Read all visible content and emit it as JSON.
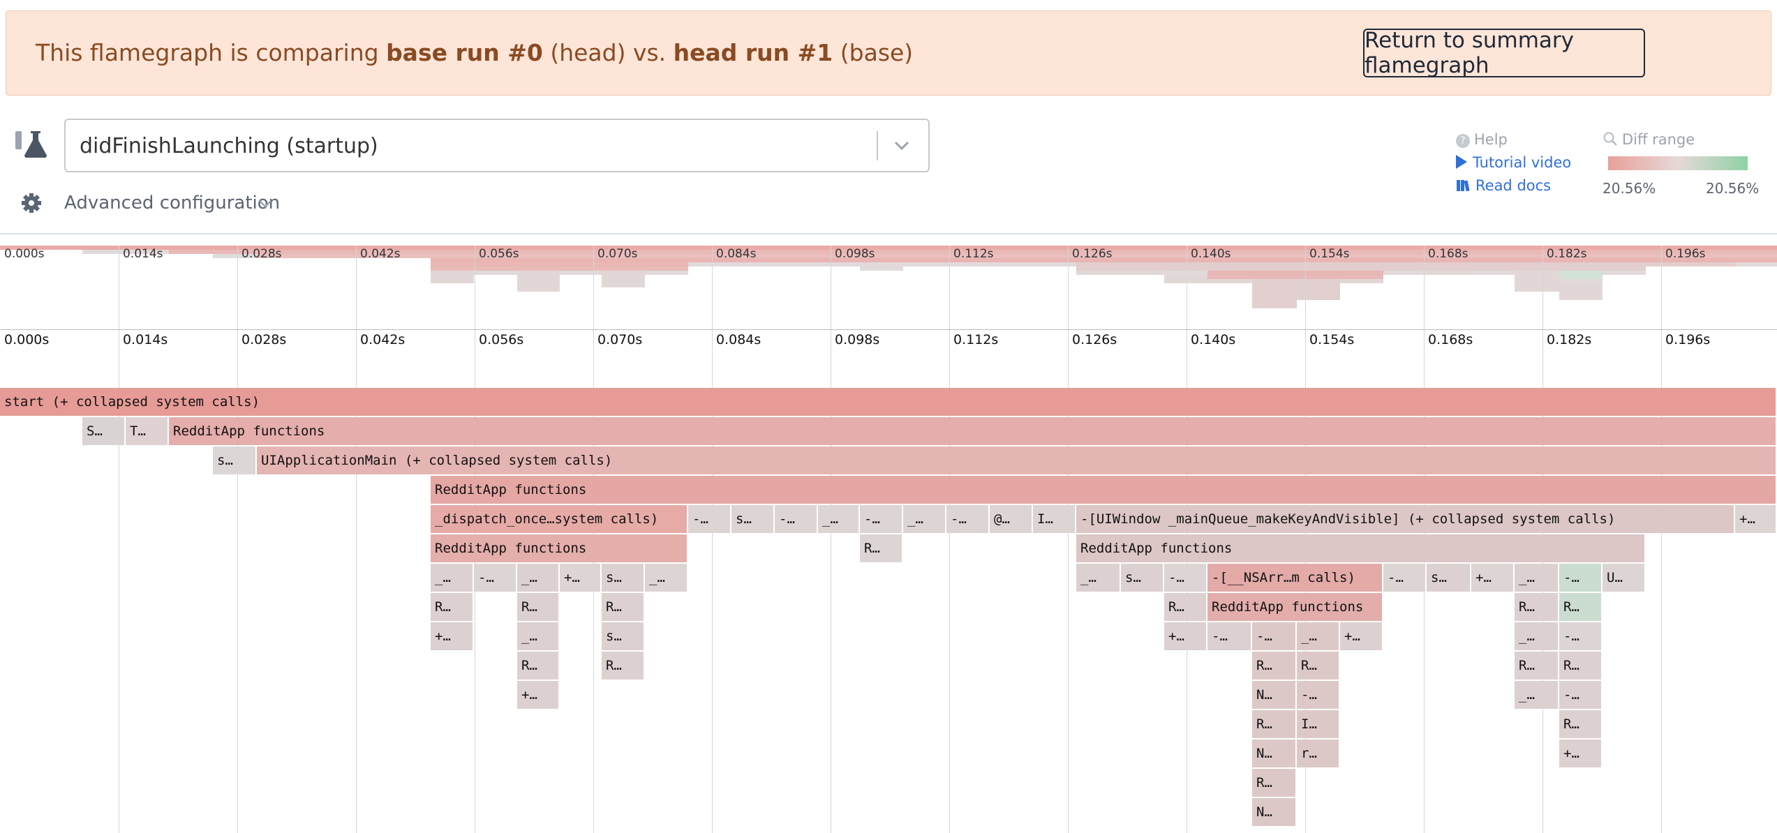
{
  "banner": {
    "prefix": "This flamegraph is comparing ",
    "base_run": "base run #0",
    "base_suffix": " (head) vs. ",
    "head_run": "head run #1",
    "head_suffix": " (base)",
    "return_button": "Return to summary flamegraph"
  },
  "selector": {
    "value": "didFinishLaunching (startup)",
    "icon": "flask-icon",
    "dropdown_icon": "chevron-down-icon"
  },
  "advanced": {
    "label": "Advanced configuration",
    "icon": "gear-icon"
  },
  "help": {
    "title": "Help",
    "tutorial": "Tutorial video",
    "docs": "Read docs"
  },
  "diff_range": {
    "title": "Diff range",
    "min": "20.56%",
    "max": "20.56%",
    "colors": {
      "slower": "#e8a09a",
      "neutral": "#e6d8d8",
      "faster": "#8fd1a5"
    }
  },
  "time_ticks": [
    "0.000s",
    "0.014s",
    "0.028s",
    "0.042s",
    "0.056s",
    "0.070s",
    "0.084s",
    "0.098s",
    "0.112s",
    "0.126s",
    "0.140s",
    "0.154s",
    "0.168s",
    "0.182s",
    "0.196s"
  ],
  "frames": [
    {
      "d": 0,
      "s": 0,
      "e": 2546,
      "t": "start (+ collapsed system calls)",
      "c": "#e69b96"
    },
    {
      "d": 1,
      "s": 118,
      "e": 180,
      "t": "S…",
      "c": "#d9d3d3"
    },
    {
      "d": 1,
      "s": 180,
      "e": 242,
      "t": "T…",
      "c": "#e0d2d2"
    },
    {
      "d": 1,
      "s": 242,
      "e": 2546,
      "t": "RedditApp functions",
      "c": "#e5adab"
    },
    {
      "d": 2,
      "s": 305,
      "e": 368,
      "t": "s…",
      "c": "#dcd6d6"
    },
    {
      "d": 2,
      "s": 368,
      "e": 2546,
      "t": "UIApplicationMain (+ collapsed system calls)",
      "c": "#e5b5b3"
    },
    {
      "d": 3,
      "s": 617,
      "e": 2546,
      "t": "RedditApp functions",
      "c": "#e5a7a4"
    },
    {
      "d": 4,
      "s": 617,
      "e": 986,
      "t": "_dispatch_once…system calls)",
      "c": "#e6aaa7"
    },
    {
      "d": 4,
      "s": 986,
      "e": 1048,
      "t": "-…",
      "c": "#ddd4d4"
    },
    {
      "d": 4,
      "s": 1048,
      "e": 1110,
      "t": "s…",
      "c": "#ddd4d4"
    },
    {
      "d": 4,
      "s": 1110,
      "e": 1172,
      "t": "-…",
      "c": "#ddd4d4"
    },
    {
      "d": 4,
      "s": 1172,
      "e": 1232,
      "t": "_…",
      "c": "#ddd4d4"
    },
    {
      "d": 4,
      "s": 1232,
      "e": 1294,
      "t": "-…",
      "c": "#ddd4d4"
    },
    {
      "d": 4,
      "s": 1294,
      "e": 1356,
      "t": "_…",
      "c": "#ddd4d4"
    },
    {
      "d": 4,
      "s": 1356,
      "e": 1418,
      "t": "-…",
      "c": "#ddd4d4"
    },
    {
      "d": 4,
      "s": 1418,
      "e": 1480,
      "t": "@…",
      "c": "#ddd4d4"
    },
    {
      "d": 4,
      "s": 1480,
      "e": 1542,
      "t": "I…",
      "c": "#ddd4d4"
    },
    {
      "d": 4,
      "s": 1542,
      "e": 2486,
      "t": "-[UIWindow _mainQueue_makeKeyAndVisible] (+ collapsed system calls)",
      "c": "#ddc6c6"
    },
    {
      "d": 4,
      "s": 2486,
      "e": 2546,
      "t": "+…",
      "c": "#ddd4d4"
    },
    {
      "d": 5,
      "s": 617,
      "e": 986,
      "t": "RedditApp functions",
      "c": "#e4aeab"
    },
    {
      "d": 5,
      "s": 1232,
      "e": 1294,
      "t": "R…",
      "c": "#ddd4d4"
    },
    {
      "d": 5,
      "s": 1542,
      "e": 2358,
      "t": "RedditApp functions",
      "c": "#ddc6c6"
    },
    {
      "d": 6,
      "s": 617,
      "e": 679,
      "t": "_…",
      "c": "#ddd0d0"
    },
    {
      "d": 6,
      "s": 679,
      "e": 741,
      "t": "-…",
      "c": "#ddd4d4"
    },
    {
      "d": 6,
      "s": 741,
      "e": 802,
      "t": "_…",
      "c": "#ddd0d0"
    },
    {
      "d": 6,
      "s": 802,
      "e": 862,
      "t": "+…",
      "c": "#ddd4d4"
    },
    {
      "d": 6,
      "s": 862,
      "e": 924,
      "t": "s…",
      "c": "#ddd0d0"
    },
    {
      "d": 6,
      "s": 924,
      "e": 986,
      "t": "_…",
      "c": "#ddd4d4"
    },
    {
      "d": 6,
      "s": 1542,
      "e": 1606,
      "t": "_…",
      "c": "#ddd0d0"
    },
    {
      "d": 6,
      "s": 1606,
      "e": 1668,
      "t": "s…",
      "c": "#ddd0d0"
    },
    {
      "d": 6,
      "s": 1668,
      "e": 1730,
      "t": "-…",
      "c": "#ddd4d4"
    },
    {
      "d": 6,
      "s": 1730,
      "e": 1982,
      "t": "-[__NSArr…m calls)",
      "c": "#e3aaa8"
    },
    {
      "d": 6,
      "s": 1982,
      "e": 2044,
      "t": "-…",
      "c": "#ddd4d4"
    },
    {
      "d": 6,
      "s": 2044,
      "e": 2108,
      "t": "s…",
      "c": "#ddd0d0"
    },
    {
      "d": 6,
      "s": 2108,
      "e": 2170,
      "t": "+…",
      "c": "#ddd4d4"
    },
    {
      "d": 6,
      "s": 2170,
      "e": 2234,
      "t": "_…",
      "c": "#ddd0d0"
    },
    {
      "d": 6,
      "s": 2234,
      "e": 2296,
      "t": "-…",
      "c": "#cbdcd0"
    },
    {
      "d": 6,
      "s": 2296,
      "e": 2358,
      "t": "U…",
      "c": "#ddd4d4"
    },
    {
      "d": 7,
      "s": 617,
      "e": 679,
      "t": "R…",
      "c": "#ddd0d0"
    },
    {
      "d": 7,
      "s": 741,
      "e": 802,
      "t": "R…",
      "c": "#ddd0d0"
    },
    {
      "d": 7,
      "s": 862,
      "e": 924,
      "t": "R…",
      "c": "#ddd0d0"
    },
    {
      "d": 7,
      "s": 1668,
      "e": 1730,
      "t": "R…",
      "c": "#ddd0d0"
    },
    {
      "d": 7,
      "s": 1730,
      "e": 1982,
      "t": "RedditApp functions",
      "c": "#e3adab"
    },
    {
      "d": 7,
      "s": 2170,
      "e": 2234,
      "t": "R…",
      "c": "#ddd0d0"
    },
    {
      "d": 7,
      "s": 2234,
      "e": 2296,
      "t": "R…",
      "c": "#cbdcd0"
    },
    {
      "d": 8,
      "s": 617,
      "e": 679,
      "t": "+…",
      "c": "#ddd0d0"
    },
    {
      "d": 8,
      "s": 741,
      "e": 802,
      "t": "_…",
      "c": "#ddd0d0"
    },
    {
      "d": 8,
      "s": 862,
      "e": 924,
      "t": "s…",
      "c": "#ddd0d0"
    },
    {
      "d": 8,
      "s": 1668,
      "e": 1730,
      "t": "+…",
      "c": "#ddd0d0"
    },
    {
      "d": 8,
      "s": 1730,
      "e": 1794,
      "t": "-…",
      "c": "#ddd0d0"
    },
    {
      "d": 8,
      "s": 1794,
      "e": 1858,
      "t": "-…",
      "c": "#ddc8c8"
    },
    {
      "d": 8,
      "s": 1858,
      "e": 1920,
      "t": "_…",
      "c": "#ddc8c8"
    },
    {
      "d": 8,
      "s": 1920,
      "e": 1982,
      "t": "+…",
      "c": "#ddd0d0"
    },
    {
      "d": 8,
      "s": 2170,
      "e": 2234,
      "t": "_…",
      "c": "#ddd0d0"
    },
    {
      "d": 8,
      "s": 2234,
      "e": 2296,
      "t": "-…",
      "c": "#ddd4d4"
    },
    {
      "d": 9,
      "s": 741,
      "e": 802,
      "t": "R…",
      "c": "#ddd0d0"
    },
    {
      "d": 9,
      "s": 862,
      "e": 924,
      "t": "R…",
      "c": "#ddd0d0"
    },
    {
      "d": 9,
      "s": 1794,
      "e": 1858,
      "t": "R…",
      "c": "#ddc8c8"
    },
    {
      "d": 9,
      "s": 1858,
      "e": 1920,
      "t": "R…",
      "c": "#ddc8c8"
    },
    {
      "d": 9,
      "s": 2170,
      "e": 2234,
      "t": "R…",
      "c": "#ddd0d0"
    },
    {
      "d": 9,
      "s": 2234,
      "e": 2296,
      "t": "R…",
      "c": "#ddd0d0"
    },
    {
      "d": 10,
      "s": 741,
      "e": 802,
      "t": "+…",
      "c": "#ddd0d0"
    },
    {
      "d": 10,
      "s": 1794,
      "e": 1858,
      "t": "N…",
      "c": "#ddc8c8"
    },
    {
      "d": 10,
      "s": 1858,
      "e": 1920,
      "t": "-…",
      "c": "#ddc8c8"
    },
    {
      "d": 10,
      "s": 2170,
      "e": 2234,
      "t": "_…",
      "c": "#ddd0d0"
    },
    {
      "d": 10,
      "s": 2234,
      "e": 2296,
      "t": "-…",
      "c": "#ddd0d0"
    },
    {
      "d": 11,
      "s": 1794,
      "e": 1858,
      "t": "R…",
      "c": "#ddc8c8"
    },
    {
      "d": 11,
      "s": 1858,
      "e": 1920,
      "t": "I…",
      "c": "#ddc8c8"
    },
    {
      "d": 11,
      "s": 2234,
      "e": 2296,
      "t": "R…",
      "c": "#ddd0d0"
    },
    {
      "d": 12,
      "s": 1794,
      "e": 1858,
      "t": "N…",
      "c": "#ddc8c8"
    },
    {
      "d": 12,
      "s": 1858,
      "e": 1920,
      "t": "r…",
      "c": "#ddc8c8"
    },
    {
      "d": 12,
      "s": 2234,
      "e": 2296,
      "t": "+…",
      "c": "#ddd0d0"
    },
    {
      "d": 13,
      "s": 1794,
      "e": 1858,
      "t": "R…",
      "c": "#ddc8c8"
    },
    {
      "d": 14,
      "s": 1794,
      "e": 1858,
      "t": "N…",
      "c": "#ddc8c8"
    }
  ]
}
